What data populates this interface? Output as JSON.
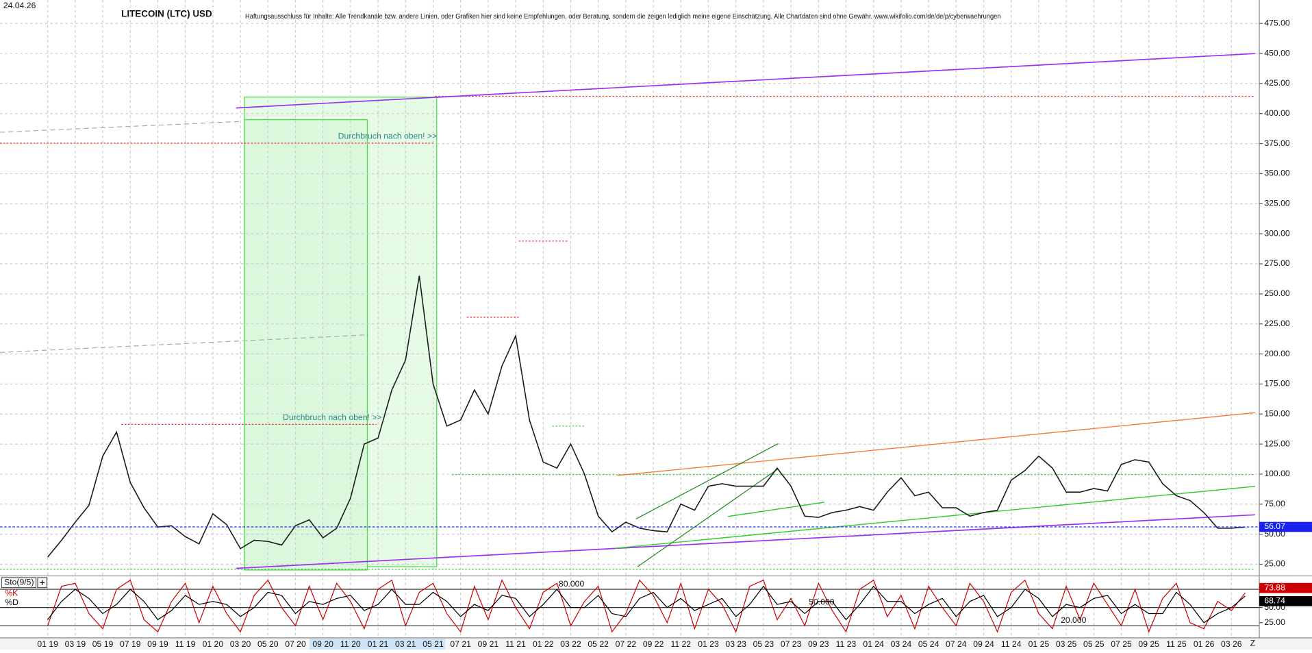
{
  "chart_data": [
    {
      "type": "line",
      "date": "24.04.26",
      "title": "LITECOIN (LTC) USD",
      "subtitle": "Haftungsausschluss für Inhalte: Alle Trendkanäle bzw. andere Linien, oder Grafiken hier sind keine Empfehlungen, oder Beratung, sondern die zeigen lediglich meine eigene Einschätzung. Alle Chartdaten sind ohne Gewähr. www.wikifolio.com/de/de/p/cyberwaehrungen",
      "annotations": [
        "Durchbruch nach oben! >>",
        "Durchbruch nach oben! >>"
      ],
      "categories": [
        "01 19",
        null,
        "03 19",
        null,
        "05 19",
        null,
        "07 19",
        null,
        "09 19",
        null,
        "11 19",
        null,
        "01 20",
        null,
        "03 20",
        null,
        "05 20",
        null,
        "07 20",
        null,
        "09 20",
        null,
        "11 20",
        null,
        "01 21",
        null,
        "03 21",
        null,
        "05 21",
        null,
        "07 21",
        null,
        "09 21",
        null,
        "11 21",
        null,
        "01 22",
        null,
        "03 22",
        null,
        "05 22",
        null,
        "07 22",
        null,
        "09 22",
        null,
        "11 22",
        null,
        "01 23",
        null,
        "03 23",
        null,
        "05 23",
        null,
        "07 23",
        null,
        "09 23",
        null,
        "11 23",
        null,
        "01 24",
        null,
        "03 24",
        null,
        "05 24",
        null,
        "07 24",
        null,
        "09 24",
        null,
        "11 24",
        null,
        "01 25",
        null,
        "03 25",
        null,
        "05 25",
        null,
        "07 25",
        null,
        "09 25",
        null,
        "11 25",
        null,
        "01 26",
        null,
        "03 26",
        null
      ],
      "x_end_label": "Z",
      "series": [
        {
          "color": "#1a1a1a",
          "values": [
            31,
            45,
            60,
            74,
            115,
            135,
            93,
            72,
            56,
            57,
            48,
            42,
            67,
            58,
            38,
            45,
            44,
            41,
            57,
            62,
            47,
            55,
            80,
            125,
            130,
            170,
            195,
            265,
            175,
            140,
            145,
            170,
            150,
            190,
            215,
            145,
            110,
            105,
            125,
            100,
            65,
            52,
            60,
            55,
            53,
            52,
            75,
            70,
            90,
            92,
            90,
            90,
            90,
            105,
            90,
            65,
            64,
            68,
            70,
            73,
            70,
            85,
            97,
            82,
            85,
            72,
            72,
            65,
            68,
            70,
            95,
            103,
            115,
            105,
            85,
            85,
            88,
            86,
            108,
            112,
            110,
            92,
            82,
            78,
            68,
            55,
            55,
            56
          ]
        }
      ],
      "last_value": 56.07,
      "ylim": [
        16,
        494.5
      ],
      "yticks": [
        {
          "value": 25,
          "label": "25.00"
        },
        {
          "value": 50,
          "label": "50.00"
        },
        {
          "value": 75,
          "label": "75.00"
        },
        {
          "value": 100,
          "label": "100.00"
        },
        {
          "value": 125,
          "label": "125.00"
        },
        {
          "value": 150,
          "label": "150.00"
        },
        {
          "value": 175,
          "label": "175.00"
        },
        {
          "value": 200,
          "label": "200.00"
        },
        {
          "value": 225,
          "label": "225.00"
        },
        {
          "value": 250,
          "label": "250.00"
        },
        {
          "value": 275,
          "label": "275.00"
        },
        {
          "value": 300,
          "label": "300.00"
        },
        {
          "value": 325,
          "label": "325.00"
        },
        {
          "value": 350,
          "label": "350.00"
        },
        {
          "value": 375,
          "label": "375.00"
        },
        {
          "value": 400,
          "label": "400.00"
        },
        {
          "value": 425,
          "label": "425.00"
        },
        {
          "value": 450,
          "label": "450.00"
        },
        {
          "value": 475,
          "label": "475.00"
        }
      ],
      "grid": true
    },
    {
      "type": "line",
      "title": "Sto(9/5)",
      "series": [
        {
          "name": "%K",
          "color": "#cc0000",
          "values": [
            20,
            85,
            90,
            40,
            15,
            80,
            95,
            30,
            10,
            60,
            90,
            25,
            85,
            40,
            10,
            70,
            95,
            50,
            20,
            85,
            30,
            90,
            60,
            15,
            80,
            95,
            20,
            75,
            90,
            40,
            10,
            85,
            30,
            95,
            50,
            15,
            75,
            90,
            20,
            60,
            85,
            10,
            40,
            95,
            70,
            25,
            90,
            15,
            80,
            55,
            10,
            85,
            95,
            30,
            65,
            20,
            90,
            45,
            10,
            80,
            95,
            35,
            70,
            15,
            85,
            50,
            20,
            90,
            60,
            10,
            75,
            95,
            40,
            15,
            85,
            30,
            90,
            55,
            20,
            80,
            10,
            65,
            90,
            25,
            15,
            60,
            45,
            73.88
          ]
        },
        {
          "name": "%D",
          "color": "#000000",
          "values": [
            30,
            60,
            80,
            65,
            40,
            55,
            80,
            60,
            30,
            45,
            70,
            55,
            60,
            55,
            35,
            50,
            75,
            70,
            40,
            60,
            55,
            65,
            70,
            45,
            55,
            80,
            55,
            55,
            75,
            60,
            35,
            55,
            45,
            70,
            65,
            35,
            55,
            80,
            50,
            50,
            70,
            40,
            35,
            65,
            75,
            50,
            65,
            45,
            55,
            65,
            35,
            55,
            85,
            55,
            60,
            40,
            60,
            60,
            30,
            55,
            85,
            60,
            60,
            40,
            55,
            65,
            35,
            60,
            70,
            35,
            50,
            80,
            65,
            35,
            55,
            50,
            65,
            70,
            40,
            55,
            40,
            40,
            75,
            55,
            25,
            40,
            50,
            68.74
          ]
        }
      ],
      "levels": [
        {
          "value": 80,
          "label": "80.000"
        },
        {
          "value": 50,
          "label": "50.000"
        },
        {
          "value": 20,
          "label": "20.000"
        }
      ],
      "ylim": [
        0,
        100
      ],
      "yticks": [
        {
          "value": 25,
          "label": "25.00"
        },
        {
          "value": 50,
          "label": "50.00"
        }
      ]
    }
  ]
}
